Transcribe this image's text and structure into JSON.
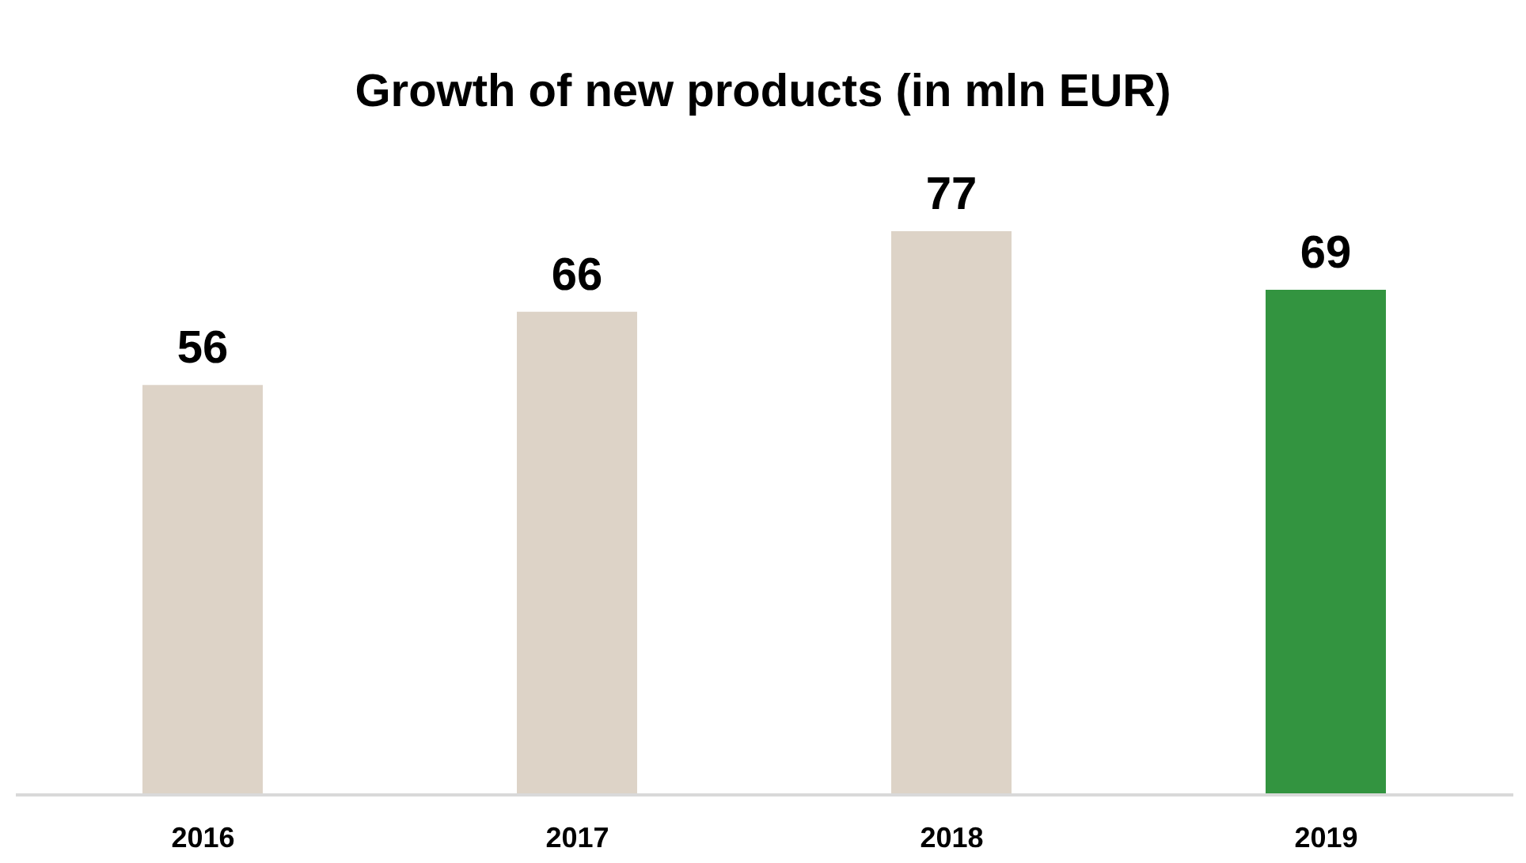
{
  "chart_data": {
    "type": "bar",
    "title": "Growth of new products (in mln EUR)",
    "categories": [
      "2016",
      "2017",
      "2018",
      "2019"
    ],
    "values": [
      56,
      66,
      77,
      69
    ],
    "colors": [
      "#ddd3c7",
      "#ddd3c7",
      "#ddd3c7",
      "#339440"
    ],
    "data_labels": true
  }
}
